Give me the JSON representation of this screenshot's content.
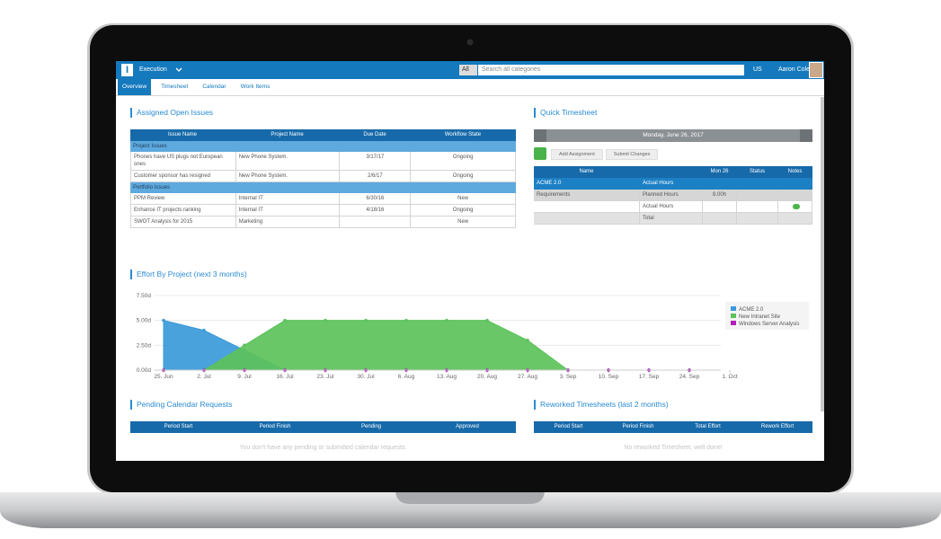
{
  "app": {
    "logo": "I",
    "workspace": "Execution",
    "search_scope": "All",
    "search_placeholder": "Search all categories",
    "region": "US",
    "user": "Aaron Cole"
  },
  "tabs": [
    "Overview",
    "Timesheet",
    "Calendar",
    "Work Items"
  ],
  "active_tab": 0,
  "assigned_open_issues": {
    "title": "Assigned Open Issues",
    "columns": [
      "Issue Name",
      "Project Name",
      "Due Date",
      "Workflow State"
    ],
    "groups": [
      {
        "name": "Project Issues",
        "rows": [
          [
            "Phones have US plugs not European ones",
            "New Phone System.",
            "3/17/17",
            "Ongoing"
          ],
          [
            "Customer sponsor has resigned",
            "New Phone System.",
            "2/6/17",
            "Ongoing"
          ]
        ]
      },
      {
        "name": "Portfolio Issues",
        "rows": [
          [
            "PPM Review",
            "Internal IT",
            "6/30/16",
            "New"
          ],
          [
            "Enhance IT projects ranking",
            "Internal IT",
            "4/18/16",
            "Ongoing"
          ],
          [
            "SWOT Analysis for 2015",
            "Marketing",
            null,
            "New"
          ]
        ]
      }
    ]
  },
  "quick_timesheet": {
    "title": "Quick Timesheet",
    "date": "Monday, June 26, 2017",
    "actions": [
      "Add Assignment",
      "Submit Changes"
    ],
    "columns": [
      "Name",
      null,
      "Mon 26",
      "Status",
      "Notes"
    ],
    "rows": [
      [
        "ACME 2.0",
        "Actual Hours",
        null,
        null,
        null
      ],
      [
        "Requirements",
        "Planned Hours",
        "8.00h",
        null,
        null
      ],
      [
        null,
        "Actual Hours",
        null,
        null,
        null
      ],
      [
        null,
        "Total",
        null,
        null,
        null
      ]
    ]
  },
  "chart_data": {
    "type": "area",
    "title": "Effort By Project (next 3 months)",
    "categories": [
      "25. Jun",
      "2. Jul",
      "9. Jul",
      "16. Jul",
      "23. Jul",
      "30. Jul",
      "6. Aug",
      "13. Aug",
      "20. Aug",
      "27. Aug",
      "3. Sep",
      "10. Sep",
      "17. Sep",
      "24. Sep",
      "1. Oct"
    ],
    "series": [
      {
        "name": "ACME 2.0",
        "color": "#3b9ad9",
        "values": [
          5,
          4,
          2,
          0,
          0,
          0,
          0,
          0,
          0,
          0,
          0,
          0,
          0,
          0,
          null
        ]
      },
      {
        "name": "New Intranet Site",
        "color": "#5cc25a",
        "values": [
          0,
          0,
          2.5,
          5,
          5,
          5,
          5,
          5,
          5,
          3,
          0,
          0,
          0,
          0,
          null
        ]
      },
      {
        "name": "Windows Server Analysis",
        "color": "#b21eb5",
        "values": [
          0,
          0,
          0,
          0,
          0,
          0,
          0,
          0,
          0,
          0,
          0,
          0,
          0,
          0,
          null
        ]
      }
    ],
    "ylim": [
      0,
      7.5
    ],
    "yticks": [
      {
        "value": 0,
        "label": "0.00d"
      },
      {
        "value": 2.5,
        "label": "2.50d"
      },
      {
        "value": 5,
        "label": "5.00d"
      },
      {
        "value": 7.5,
        "label": "7.50d"
      }
    ],
    "grid": true,
    "legend": "right"
  },
  "pending_calendar_requests": {
    "title": "Pending Calendar Requests",
    "columns": [
      "Period Start",
      "Period Finish",
      "Pending",
      "Approved"
    ],
    "empty_message": "You don't have any pending or submitted calendar requests."
  },
  "reworked_timesheets": {
    "title": "Reworked Timesheets (last 2 months)",
    "columns": [
      "Period Start",
      "Period Finish",
      "Total Effort",
      "Rework Effort"
    ],
    "empty_message": "No reworked Timesheet, well done!"
  }
}
